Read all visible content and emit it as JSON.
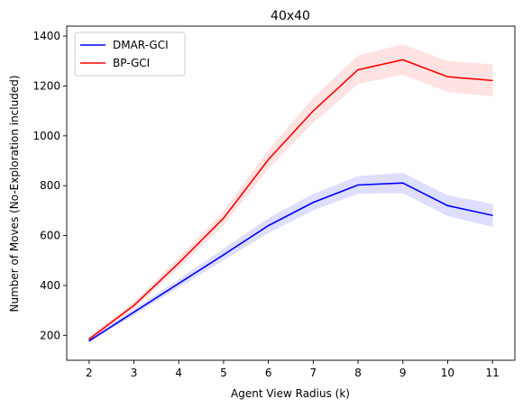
{
  "chart_data": {
    "type": "line",
    "title": "40x40",
    "xlabel": "Agent View Radius (k)",
    "ylabel": "Number of Moves (No-Exploration included)",
    "x": [
      2,
      3,
      4,
      5,
      6,
      7,
      8,
      9,
      10,
      11
    ],
    "xlim": [
      1.5,
      11.5
    ],
    "ylim": [
      100,
      1440
    ],
    "xticks": [
      2,
      3,
      4,
      5,
      6,
      7,
      8,
      9,
      10,
      11
    ],
    "yticks": [
      200,
      400,
      600,
      800,
      1000,
      1200,
      1400
    ],
    "grid": false,
    "legend_position": "upper-left",
    "series": [
      {
        "name": "DMAR-GCI",
        "color": "#0000ff",
        "band_color": "#d9d9ff",
        "values": [
          178,
          293,
          408,
          523,
          640,
          733,
          803,
          811,
          720,
          681
        ],
        "lower": [
          173,
          283,
          393,
          503,
          612,
          703,
          770,
          772,
          680,
          637
        ],
        "upper": [
          185,
          303,
          423,
          545,
          668,
          765,
          837,
          850,
          760,
          725
        ]
      },
      {
        "name": "BP-GCI",
        "color": "#ff0000",
        "band_color": "#ffdddd",
        "values": [
          185,
          320,
          490,
          670,
          905,
          1100,
          1265,
          1305,
          1237,
          1222
        ],
        "lower": [
          178,
          310,
          472,
          645,
          870,
          1055,
          1210,
          1247,
          1178,
          1160
        ],
        "upper": [
          192,
          332,
          510,
          695,
          940,
          1150,
          1320,
          1365,
          1298,
          1285
        ]
      }
    ]
  }
}
